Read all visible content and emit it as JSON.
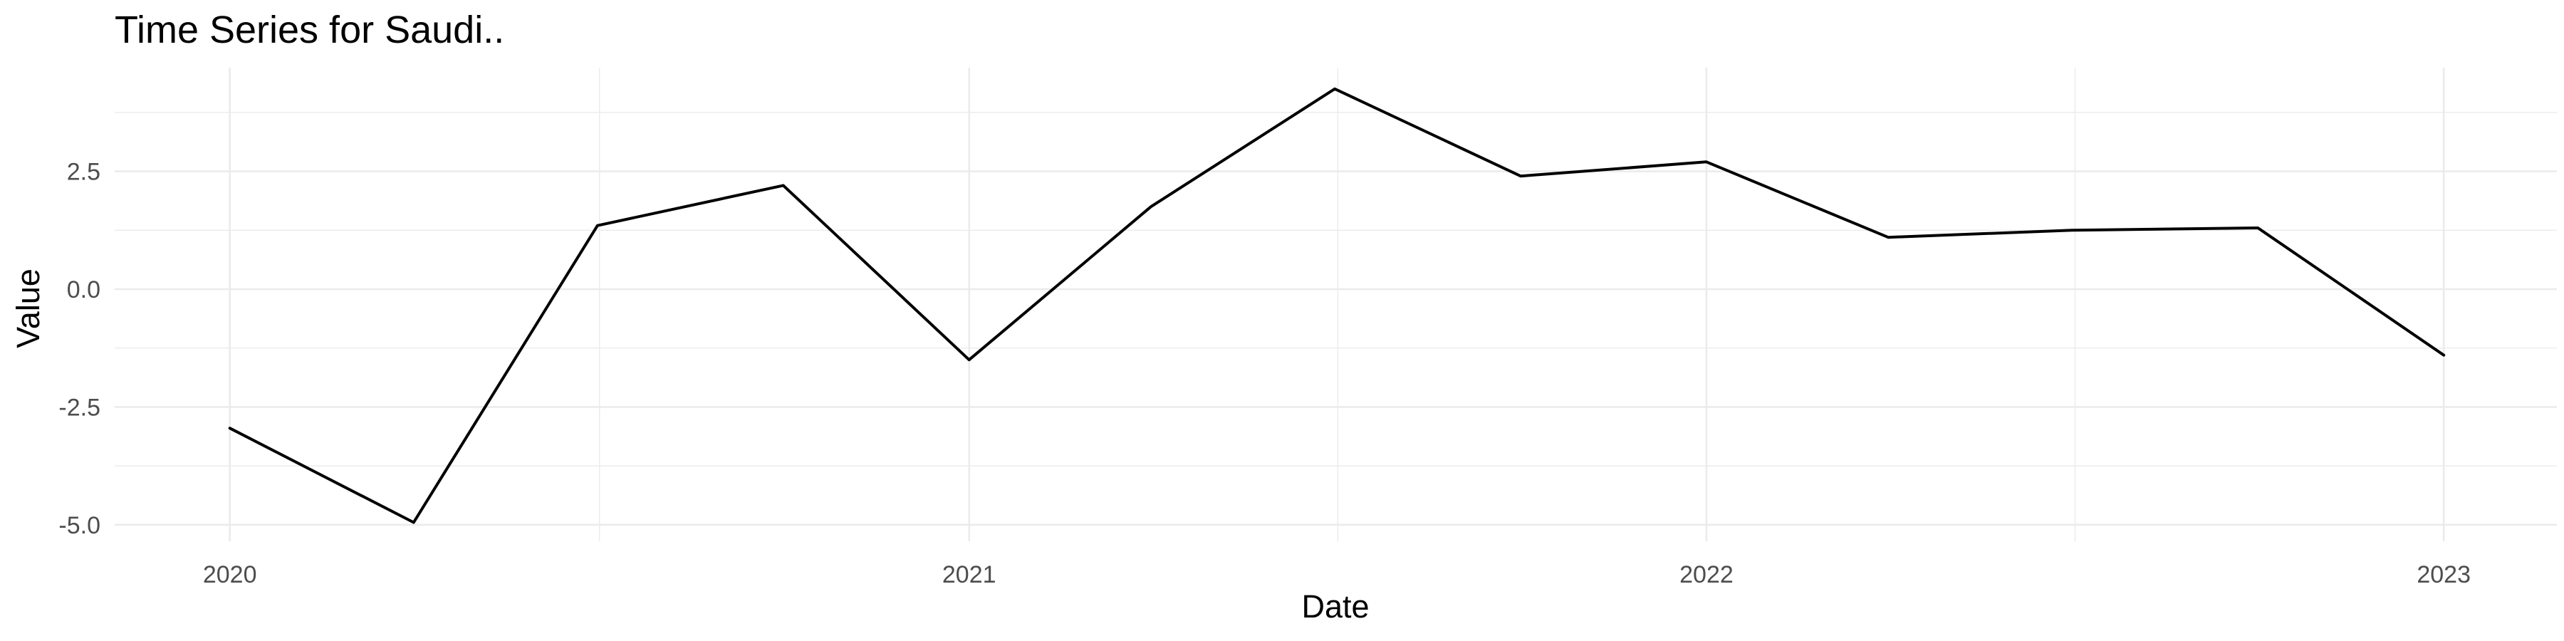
{
  "chart_data": {
    "type": "line",
    "title": "Time Series for Saudi..",
    "xlabel": "Date",
    "ylabel": "Value",
    "x": [
      "2020-01-01",
      "2020-04-01",
      "2020-07-01",
      "2020-10-01",
      "2021-01-01",
      "2021-04-01",
      "2021-07-01",
      "2021-10-01",
      "2022-01-01",
      "2022-04-01",
      "2022-07-01",
      "2022-10-01",
      "2023-01-01"
    ],
    "series": [
      {
        "values": [
          -2.95,
          -4.95,
          1.35,
          2.2,
          -1.5,
          1.75,
          4.25,
          2.4,
          2.7,
          1.1,
          1.25,
          1.3,
          -1.4
        ]
      }
    ],
    "xticks": [
      {
        "date": "2020-01-01",
        "label": "2020"
      },
      {
        "date": "2021-01-01",
        "label": "2021"
      },
      {
        "date": "2022-01-01",
        "label": "2022"
      },
      {
        "date": "2023-01-01",
        "label": "2023"
      }
    ],
    "xlim": [
      "2019-11-05",
      "2023-02-26"
    ],
    "yticks": [
      -5.0,
      -2.5,
      0.0,
      2.5
    ],
    "ytick_labels": [
      "-5.0",
      "-2.5",
      "0.0",
      "2.5"
    ],
    "ylim": [
      -5.35,
      4.7
    ],
    "grid": true,
    "line_color": "#000000"
  }
}
